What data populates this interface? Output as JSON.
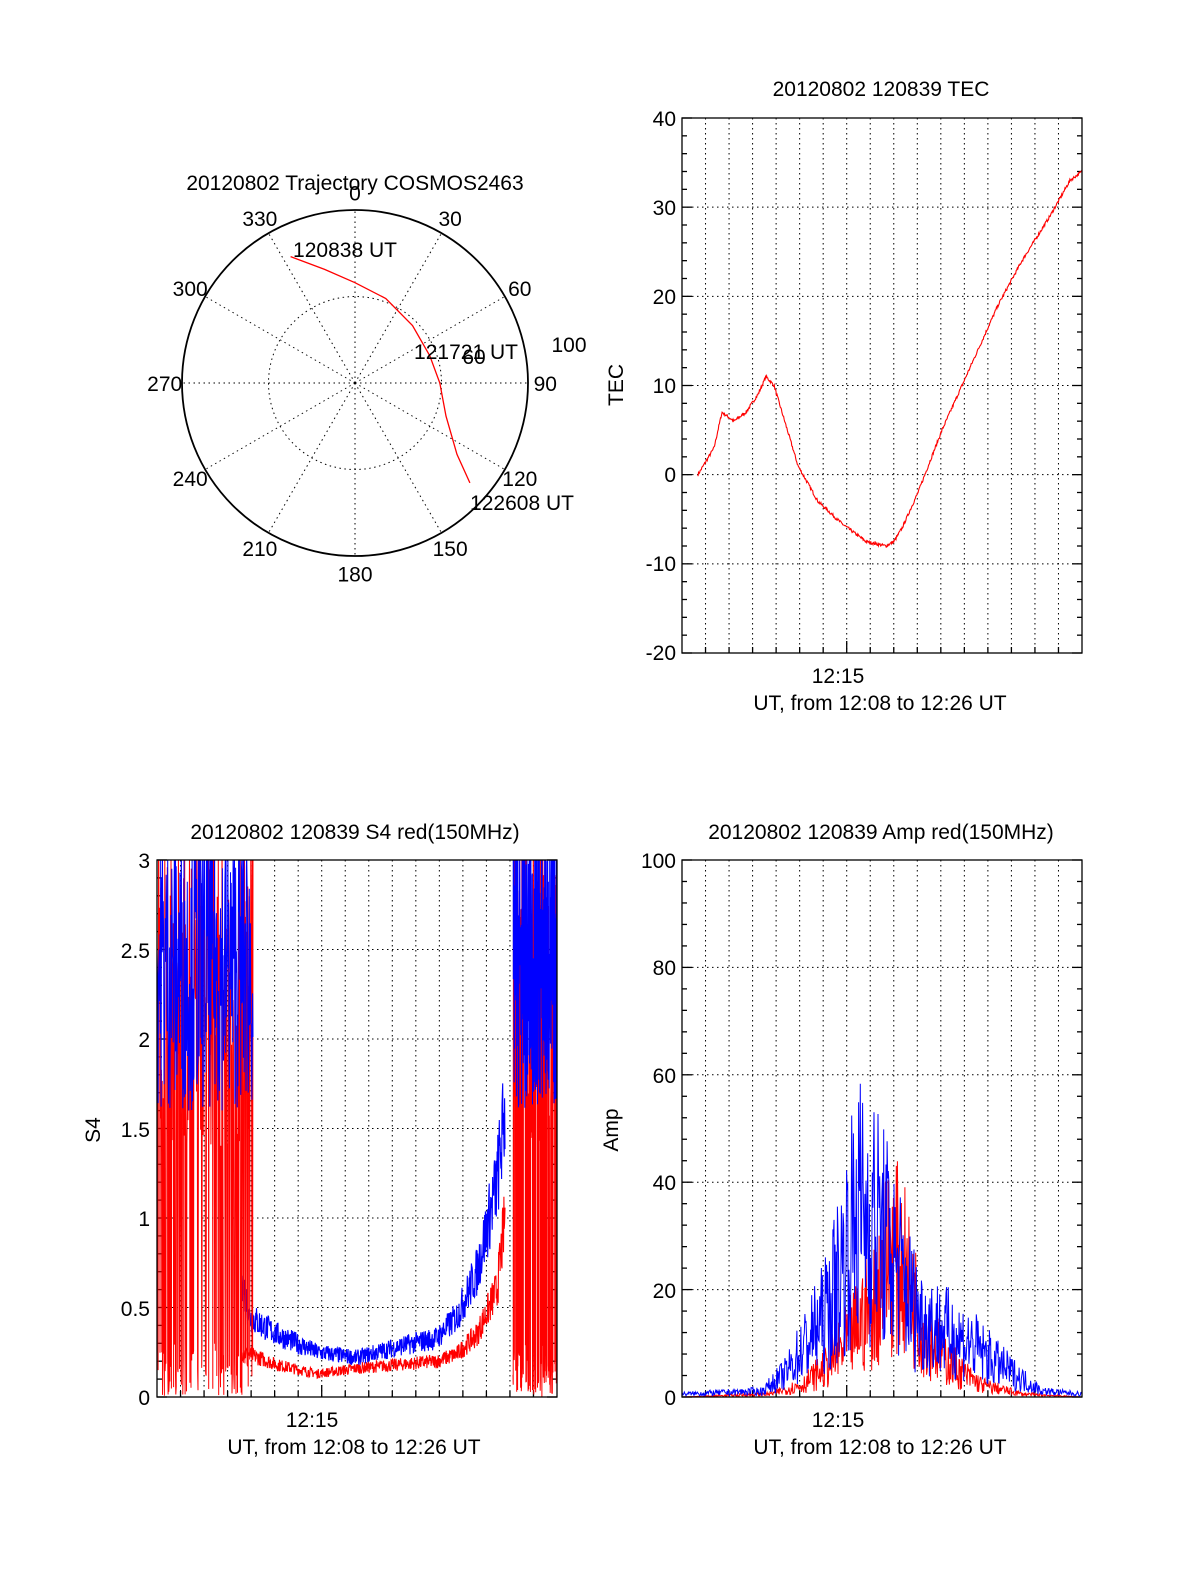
{
  "chart_data": [
    {
      "type": "polar",
      "title": "20120802 Trajectory COSMOS2463",
      "angle_labels": [
        "0",
        "30",
        "60",
        "90",
        "120",
        "150",
        "180",
        "210",
        "240",
        "270",
        "300",
        "330"
      ],
      "radius_labels": [
        "60",
        "100"
      ],
      "annotations": [
        {
          "text": "120838 UT",
          "az": 330,
          "r": 0.8
        },
        {
          "text": "121721 UT",
          "az": 90,
          "r": 0.52
        },
        {
          "text": "122608 UT",
          "az": 131,
          "r": 0.88
        }
      ],
      "series": [
        {
          "color": "#ff0000",
          "points": [
            [
              333,
              0.82
            ],
            [
              345,
              0.68
            ],
            [
              0,
              0.58
            ],
            [
              20,
              0.52
            ],
            [
              45,
              0.47
            ],
            [
              70,
              0.46
            ],
            [
              90,
              0.49
            ],
            [
              110,
              0.56
            ],
            [
              125,
              0.72
            ],
            [
              131,
              0.88
            ]
          ]
        }
      ]
    },
    {
      "type": "line",
      "title": "20120802 120839 TEC",
      "xlabel": "UT, from 12:08 to 12:26 UT",
      "ylabel": "TEC",
      "x_tick_label": "12:15",
      "ylim": [
        -20,
        40
      ],
      "yticks": [
        "40",
        "30",
        "20",
        "10",
        "0",
        "-10",
        "-20"
      ],
      "grid": true,
      "series": [
        {
          "color": "#ff0000",
          "x": [
            0.04,
            0.08,
            0.1,
            0.13,
            0.16,
            0.19,
            0.21,
            0.23,
            0.25,
            0.29,
            0.34,
            0.4,
            0.46,
            0.51,
            0.53,
            0.55,
            0.59,
            0.65,
            0.72,
            0.79,
            0.85,
            0.92,
            0.97,
            1.0
          ],
          "y": [
            0,
            3,
            7,
            6,
            7,
            9,
            11,
            10,
            7,
            1,
            -3,
            -5.5,
            -7.5,
            -8,
            -7.5,
            -6,
            -2,
            5,
            12,
            19,
            24,
            29,
            33,
            34
          ]
        }
      ]
    },
    {
      "type": "line",
      "title": "20120802 120839 S4 red(150MHz)",
      "xlabel": "UT, from 12:08 to 12:26 UT",
      "ylabel": "S4",
      "x_tick_label": "12:15",
      "ylim": [
        0,
        3
      ],
      "yticks": [
        "3",
        "2.5",
        "2",
        "1.5",
        "1",
        "0.5",
        "0"
      ],
      "grid": true,
      "series": [
        {
          "color": "#ff0000",
          "x": [
            0.21,
            0.23,
            0.3,
            0.4,
            0.5,
            0.6,
            0.7,
            0.75,
            0.8,
            0.85,
            0.87
          ],
          "y": [
            0.25,
            0.24,
            0.18,
            0.13,
            0.16,
            0.18,
            0.2,
            0.24,
            0.35,
            0.6,
            1.0
          ]
        },
        {
          "color": "#0000ff",
          "x": [
            0.21,
            0.23,
            0.3,
            0.4,
            0.5,
            0.6,
            0.7,
            0.75,
            0.8,
            0.85,
            0.87
          ],
          "y": [
            0.7,
            0.45,
            0.35,
            0.25,
            0.22,
            0.28,
            0.33,
            0.45,
            0.7,
            1.2,
            1.6
          ]
        }
      ]
    },
    {
      "type": "line",
      "title": "20120802 120839 Amp red(150MHz)",
      "xlabel": "UT, from 12:08 to 12:26 UT",
      "ylabel": "Amp",
      "x_tick_label": "12:15",
      "ylim": [
        0,
        100
      ],
      "yticks": [
        "100",
        "80",
        "60",
        "40",
        "20",
        "0"
      ],
      "grid": true,
      "series": [
        {
          "color": "#ff0000",
          "x": [
            0.0,
            0.22,
            0.3,
            0.36,
            0.4,
            0.44,
            0.48,
            0.52,
            0.55,
            0.6,
            0.65,
            0.7,
            0.75,
            0.85,
            1.0
          ],
          "y": [
            0,
            0.5,
            2,
            5,
            8,
            12,
            16,
            25,
            22,
            12,
            7,
            4,
            2,
            0.5,
            0
          ]
        },
        {
          "color": "#0000ff",
          "x": [
            0.0,
            0.2,
            0.26,
            0.31,
            0.36,
            0.4,
            0.44,
            0.48,
            0.52,
            0.56,
            0.6,
            0.66,
            0.72,
            0.78,
            0.85,
            0.9,
            1.0
          ],
          "y": [
            0.5,
            1,
            4,
            9,
            14,
            22,
            32,
            30,
            25,
            18,
            13,
            11,
            9,
            6,
            3,
            1,
            0.5
          ]
        }
      ]
    }
  ]
}
